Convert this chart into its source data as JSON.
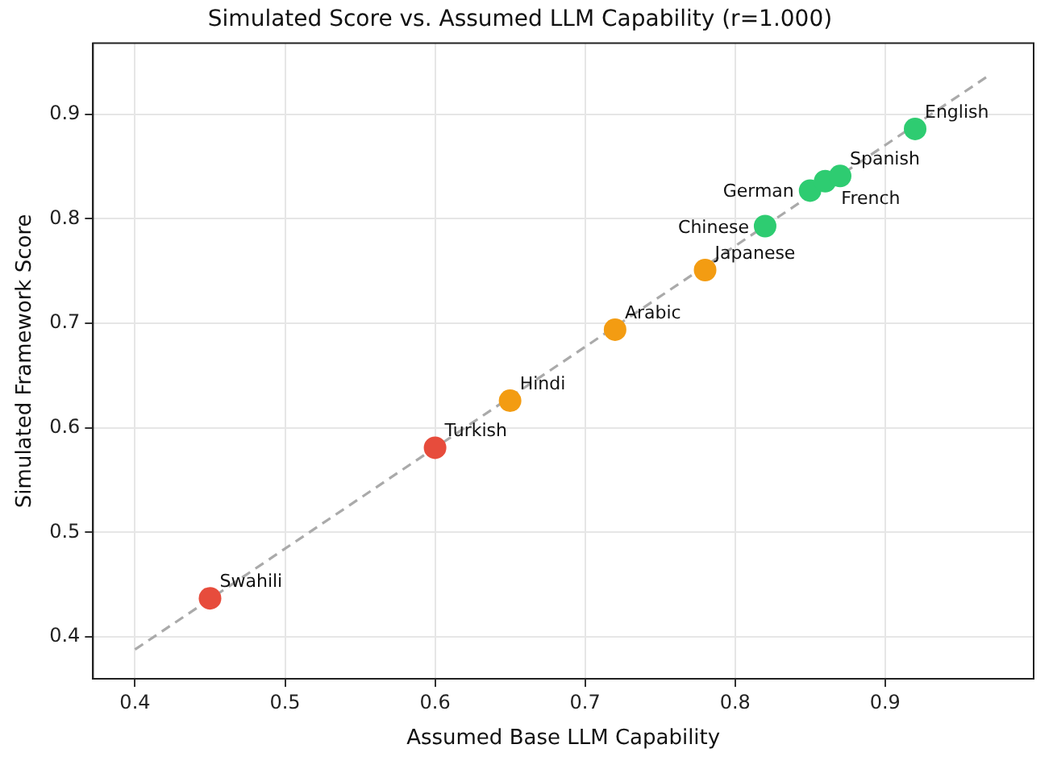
{
  "chart_data": {
    "type": "scatter",
    "title": "Simulated Score vs. Assumed LLM Capability (r=1.000)",
    "xlabel": "Assumed Base LLM Capability",
    "ylabel": "Simulated Framework Score",
    "x": [
      0.45,
      0.6,
      0.65,
      0.72,
      0.78,
      0.82,
      0.85,
      0.86,
      0.87,
      0.92
    ],
    "series": [
      {
        "values": [
          0.437,
          0.581,
          0.626,
          0.694,
          0.751,
          0.793,
          0.827,
          0.836,
          0.841,
          0.886
        ],
        "colors": [
          "#e74c3c",
          "#e74c3c",
          "#f39c12",
          "#f39c12",
          "#f39c12",
          "#2ecc71",
          "#2ecc71",
          "#2ecc71",
          "#2ecc71",
          "#2ecc71"
        ]
      },
      {
        "type": "line",
        "x": [
          0.4,
          0.97
        ],
        "values": [
          0.388,
          0.938
        ],
        "color": "#aaaaaa",
        "line_style": "dashed",
        "marker": "none"
      }
    ],
    "annotations": [
      {
        "text": "Swahili",
        "x": 0.45,
        "y": 0.437
      },
      {
        "text": "Turkish",
        "x": 0.6,
        "y": 0.581
      },
      {
        "text": "Hindi",
        "x": 0.65,
        "y": 0.626
      },
      {
        "text": "Arabic",
        "x": 0.72,
        "y": 0.694
      },
      {
        "text": "Japanese",
        "x": 0.78,
        "y": 0.751
      },
      {
        "text": "Chinese",
        "x": 0.82,
        "y": 0.793
      },
      {
        "text": "German",
        "x": 0.85,
        "y": 0.827
      },
      {
        "text": "French",
        "x": 0.86,
        "y": 0.836
      },
      {
        "text": "Spanish",
        "x": 0.87,
        "y": 0.841
      },
      {
        "text": "English",
        "x": 0.92,
        "y": 0.886
      }
    ],
    "marker": "circle",
    "xlim": [
      0.372,
      0.999
    ],
    "ylim": [
      0.36,
      0.968
    ],
    "xticks": [
      0.4,
      0.5,
      0.6,
      0.7,
      0.8,
      0.9
    ],
    "yticks": [
      0.4,
      0.5,
      0.6,
      0.7,
      0.8,
      0.9
    ],
    "grid": true,
    "legend": false
  }
}
